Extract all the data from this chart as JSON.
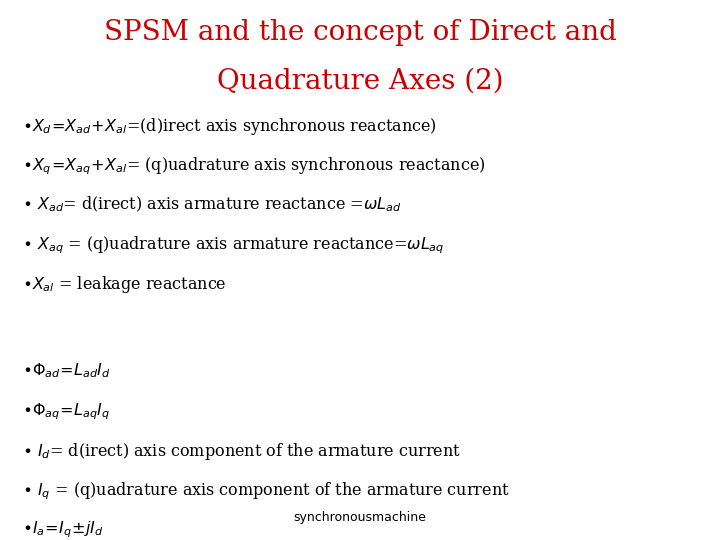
{
  "title_line1": "SPSM and the concept of Direct and",
  "title_line2": "Quadrature Axes (2)",
  "title_color": "#cc0000",
  "bg_color": "#ffffff",
  "footer": "synchronousmachine",
  "text_color": "#000000",
  "title_fontsize": 20,
  "body_fontsize": 11.5,
  "footer_fontsize": 9
}
